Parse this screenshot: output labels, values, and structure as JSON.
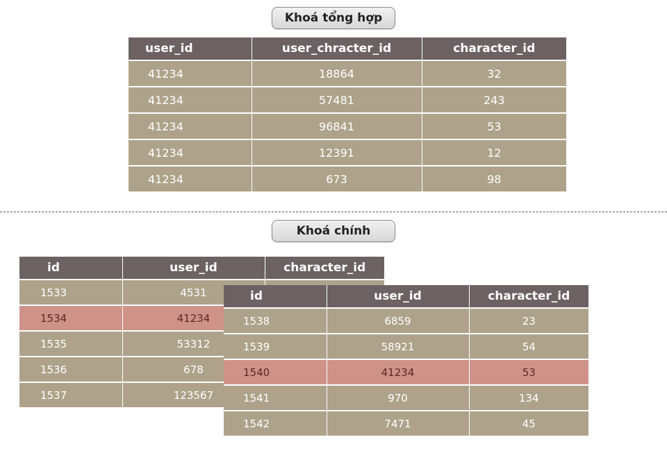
{
  "composite_key": {
    "title": "Khoá tổng hợp",
    "columns": [
      "user_id",
      "user_chracter_id",
      "character_id"
    ],
    "rows": [
      [
        "41234",
        "18864",
        "32"
      ],
      [
        "41234",
        "57481",
        "243"
      ],
      [
        "41234",
        "96841",
        "53"
      ],
      [
        "41234",
        "12391",
        "12"
      ],
      [
        "41234",
        "673",
        "98"
      ]
    ]
  },
  "primary_key": {
    "title": "Khoá chính",
    "table_back": {
      "columns": [
        "id",
        "user_id",
        "character_id"
      ],
      "rows": [
        [
          "1533",
          "4531"
        ],
        [
          "1534",
          "41234"
        ],
        [
          "1535",
          "53312"
        ],
        [
          "1536",
          "678"
        ],
        [
          "1537",
          "123567"
        ]
      ],
      "highlight_row": 1
    },
    "table_front": {
      "columns": [
        "id",
        "user_id",
        "character_id"
      ],
      "rows": [
        [
          "1538",
          "6859",
          "23"
        ],
        [
          "1539",
          "58921",
          "54"
        ],
        [
          "1540",
          "41234",
          "53"
        ],
        [
          "1541",
          "970",
          "134"
        ],
        [
          "1542",
          "7471",
          "45"
        ]
      ],
      "highlight_row": 2
    }
  },
  "colors": {
    "header_bg": "#6c6264",
    "cell_bg": "#aea38a",
    "highlight_bg": "#cf9289"
  }
}
